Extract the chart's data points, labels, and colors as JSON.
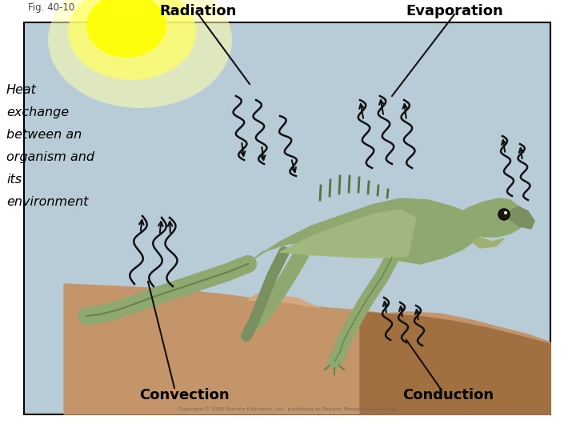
{
  "fig_label": "Fig. 40-10",
  "title_radiation": "Radiation",
  "title_evaporation": "Evaporation",
  "title_convection": "Convection",
  "title_conduction": "Conduction",
  "side_text_lines": [
    "Heat",
    "exchange",
    "between an",
    "organism and",
    "its",
    "environment"
  ],
  "copyright": "Copyright © 2008 Pearson Education, Inc., publishing as Pearson Benjamin Cummings.",
  "bg_color": "#b8ccd8",
  "sun_color_outer": "#ffffaa",
  "sun_color_mid": "#ffff66",
  "sun_color_inner": "#ffff00",
  "rock_color_main": "#c4956a",
  "rock_color_dark": "#a07040",
  "rock_color_light": "#d4a880",
  "iguana_color_main": "#8fa870",
  "iguana_color_dark": "#6b8050",
  "iguana_color_belly": "#a0b880",
  "border_color": "#000000",
  "text_color": "#000000",
  "fig_label_color": "#444444",
  "arrow_color": "#111111",
  "wavy_color": "#111111"
}
